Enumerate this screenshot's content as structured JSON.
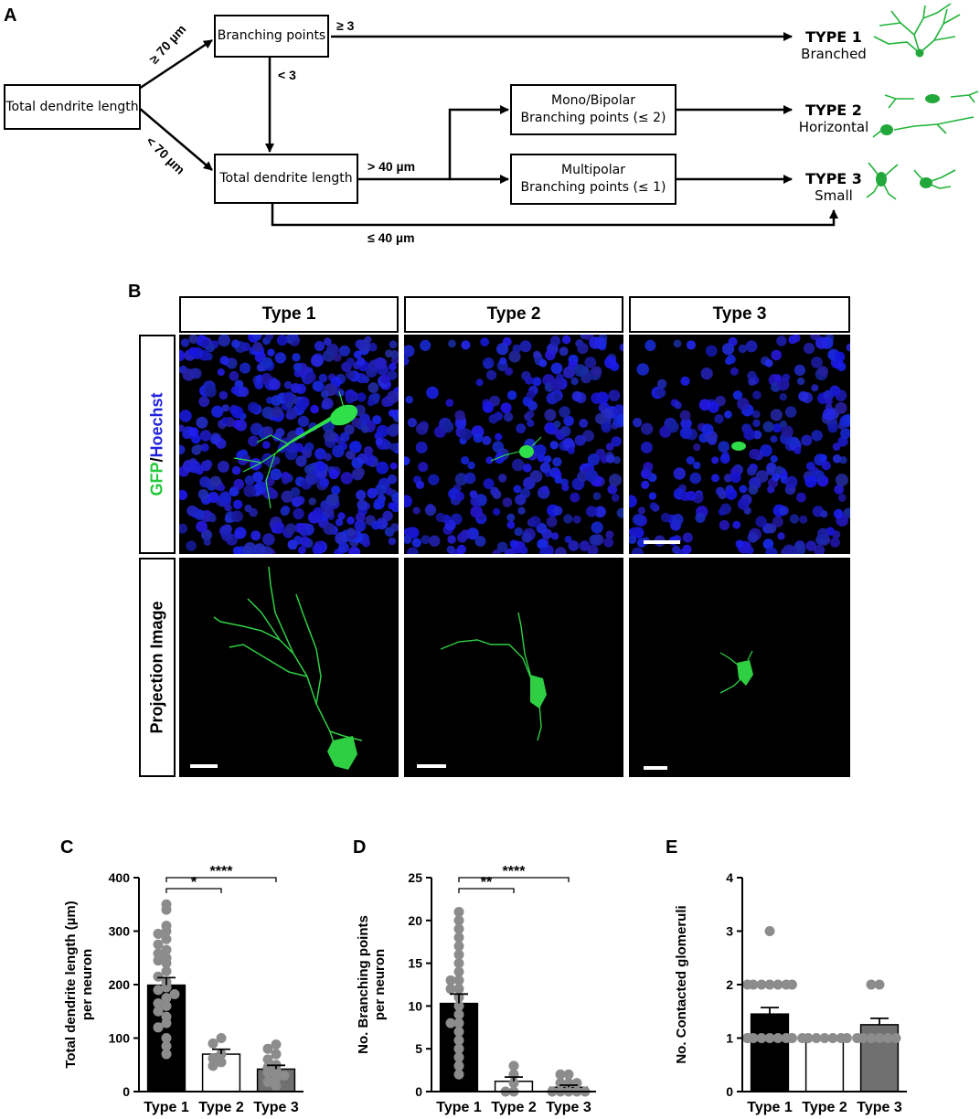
{
  "panel_a": {
    "letter": "A",
    "boxes": {
      "total_length_start": "Total dendrite length",
      "branching_points": "Branching points",
      "total_length_mid": "Total dendrite length",
      "mono_bipolar_line1": "Mono/Bipolar",
      "mono_bipolar_line2": "Branching points (≤ 2)",
      "multipolar_line1": "Multipolar",
      "multipolar_line2": "Branching points (≤ 1)"
    },
    "edge_labels": {
      "ge70": "≥ 70 µm",
      "lt70": "< 70 µm",
      "ge3": "≥ 3",
      "lt3": "< 3",
      "gt40": "> 40 µm",
      "le40": "≤ 40 µm"
    },
    "types": [
      {
        "title": "TYPE 1",
        "sub": "Branched"
      },
      {
        "title": "TYPE 2",
        "sub": "Horizontal"
      },
      {
        "title": "TYPE 3",
        "sub": "Small"
      }
    ]
  },
  "panel_b": {
    "letter": "B",
    "columns": [
      "Type 1",
      "Type 2",
      "Type 3"
    ],
    "row_stain": {
      "gfp": "GFP",
      "slash": "/",
      "hoechst": "Hoechst"
    },
    "row_projection": "Projection Image",
    "colors": {
      "gfp": "#22c93a",
      "hoechst": "#2222dd",
      "background": "#000000"
    }
  },
  "chart_data": [
    {
      "letter": "C",
      "type": "bar",
      "categories": [
        "Type 1",
        "Type 2",
        "Type 3"
      ],
      "values": [
        199,
        70,
        42
      ],
      "sem": [
        14,
        9,
        7
      ],
      "ylim": [
        0,
        400
      ],
      "yticks": [
        0,
        100,
        200,
        300,
        400
      ],
      "ylabel_line1": "Total dendrite length (µm)",
      "ylabel_line2": "per neuron",
      "bar_colors": [
        "#000000",
        "#ffffff",
        "#707070"
      ],
      "points": [
        [
          350,
          340,
          310,
          300,
          295,
          285,
          275,
          265,
          258,
          250,
          245,
          240,
          225,
          215,
          205,
          195,
          190,
          182,
          175,
          165,
          160,
          150,
          140,
          128,
          120,
          100,
          85,
          70
        ],
        [
          100,
          90,
          70,
          62,
          55,
          48
        ],
        [
          88,
          80,
          70,
          60,
          50,
          45,
          40,
          35,
          30,
          25,
          18,
          10
        ]
      ],
      "significance": [
        {
          "from": 0,
          "to": 1,
          "label": "*"
        },
        {
          "from": 0,
          "to": 2,
          "label": "****"
        }
      ]
    },
    {
      "letter": "D",
      "type": "bar",
      "categories": [
        "Type 1",
        "Type 2",
        "Type 3"
      ],
      "values": [
        10.3,
        1.2,
        0.5
      ],
      "sem": [
        1.1,
        0.5,
        0.25
      ],
      "ylim": [
        0,
        25
      ],
      "yticks": [
        0,
        5,
        10,
        15,
        20,
        25
      ],
      "ylabel_line1": "No. Branching points",
      "ylabel_line2": "per neuron",
      "bar_colors": [
        "#000000",
        "#ffffff",
        "#707070"
      ],
      "points": [
        [
          21,
          20,
          19,
          18,
          17,
          16,
          15,
          14,
          13,
          13,
          12,
          12,
          11,
          10,
          9,
          8,
          8,
          7,
          6,
          5,
          4,
          3,
          2
        ],
        [
          3,
          2,
          1,
          0,
          0
        ],
        [
          2,
          2,
          1,
          1,
          1,
          0,
          0,
          0,
          0,
          0
        ]
      ],
      "significance": [
        {
          "from": 0,
          "to": 1,
          "label": "**"
        },
        {
          "from": 0,
          "to": 2,
          "label": "****"
        }
      ]
    },
    {
      "letter": "E",
      "type": "bar",
      "categories": [
        "Type 1",
        "Type 2",
        "Type 3"
      ],
      "values": [
        1.45,
        1.0,
        1.25
      ],
      "sem": [
        0.12,
        0.0,
        0.12
      ],
      "ylim": [
        0,
        4
      ],
      "yticks": [
        0,
        1,
        2,
        3,
        4
      ],
      "ylabel_line1": "No. Contacted glomeruli",
      "ylabel_line2": "",
      "bar_colors": [
        "#000000",
        "#ffffff",
        "#707070"
      ],
      "points": [
        [
          3,
          2,
          2,
          2,
          2,
          2,
          2,
          2,
          1,
          1,
          1,
          1,
          1,
          1,
          1,
          1,
          1,
          1
        ],
        [
          1,
          1,
          1,
          1,
          1,
          1,
          1
        ],
        [
          2,
          2,
          1,
          1,
          1,
          1,
          1,
          1
        ]
      ],
      "significance": []
    }
  ]
}
